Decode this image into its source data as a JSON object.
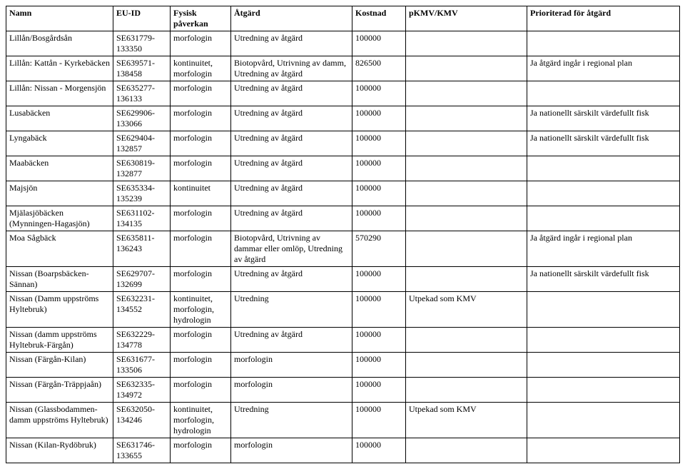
{
  "headers": {
    "namn": "Namn",
    "euid": "EU-ID",
    "fysisk": "Fysisk påverkan",
    "atgard": "Åtgärd",
    "kostnad": "Kostnad",
    "pkmv": "pKMV/KMV",
    "prior": "Prioriterad för åtgärd"
  },
  "rows": [
    {
      "namn": "Lillån/Bosgårdsån",
      "euid": "SE631779-133350",
      "fysisk": "morfologin",
      "atgard": "Utredning av åtgärd",
      "kostnad": "100000",
      "pkmv": "",
      "prior": ""
    },
    {
      "namn": "Lillån: Kattån - Kyrkebäcken",
      "euid": "SE639571-138458",
      "fysisk": "kontinuitet, morfologin",
      "atgard": "Biotopvård, Utrivning av damm, Utredning av åtgärd",
      "kostnad": "826500",
      "pkmv": "",
      "prior": "Ja åtgärd ingår i regional plan"
    },
    {
      "namn": "Lillån: Nissan - Morgensjön",
      "euid": "SE635277-136133",
      "fysisk": "morfologin",
      "atgard": "Utredning av åtgärd",
      "kostnad": "100000",
      "pkmv": "",
      "prior": ""
    },
    {
      "namn": "Lusabäcken",
      "euid": "SE629906-133066",
      "fysisk": "morfologin",
      "atgard": "Utredning av åtgärd",
      "kostnad": "100000",
      "pkmv": "",
      "prior": "Ja nationellt särskilt värdefullt fisk"
    },
    {
      "namn": "Lyngabäck",
      "euid": "SE629404-132857",
      "fysisk": "morfologin",
      "atgard": "Utredning av åtgärd",
      "kostnad": "100000",
      "pkmv": "",
      "prior": "Ja nationellt särskilt värdefullt fisk"
    },
    {
      "namn": "Maabäcken",
      "euid": "SE630819-132877",
      "fysisk": "morfologin",
      "atgard": "Utredning av åtgärd",
      "kostnad": "100000",
      "pkmv": "",
      "prior": ""
    },
    {
      "namn": "Majsjön",
      "euid": "SE635334-135239",
      "fysisk": "kontinuitet",
      "atgard": "Utredning av åtgärd",
      "kostnad": "100000",
      "pkmv": "",
      "prior": ""
    },
    {
      "namn": "Mjälasjöbäcken (Mynningen-Hagasjön)",
      "euid": "SE631102-134135",
      "fysisk": "morfologin",
      "atgard": "Utredning av åtgärd",
      "kostnad": "100000",
      "pkmv": "",
      "prior": ""
    },
    {
      "namn": "Moa Sågbäck",
      "euid": "SE635811-136243",
      "fysisk": "morfologin",
      "atgard": "Biotopvård, Utrivning av dammar eller omlöp, Utredning av åtgärd",
      "kostnad": "570290",
      "pkmv": "",
      "prior": "Ja åtgärd ingår i regional plan"
    },
    {
      "namn": "Nissan (Boarpsbäcken-Sännan)",
      "euid": "SE629707-132699",
      "fysisk": "morfologin",
      "atgard": "Utredning av åtgärd",
      "kostnad": "100000",
      "pkmv": "",
      "prior": "Ja nationellt särskilt värdefullt fisk"
    },
    {
      "namn": "Nissan (Damm uppströms Hyltebruk)",
      "euid": "SE632231-134552",
      "fysisk": "kontinuitet, morfologin, hydrologin",
      "atgard": "Utredning",
      "kostnad": "100000",
      "pkmv": "Utpekad som KMV",
      "prior": ""
    },
    {
      "namn": "Nissan (damm uppströms Hyltebruk-Färgån)",
      "euid": "SE632229-134778",
      "fysisk": "morfologin",
      "atgard": "Utredning av åtgärd",
      "kostnad": "100000",
      "pkmv": "",
      "prior": ""
    },
    {
      "namn": "Nissan (Färgån-Kilan)",
      "euid": "SE631677-133506",
      "fysisk": "morfologin",
      "atgard": "morfologin",
      "kostnad": "100000",
      "pkmv": "",
      "prior": ""
    },
    {
      "namn": "Nissan (Färgån-Träppjaån)",
      "euid": "SE632335-134972",
      "fysisk": "morfologin",
      "atgard": "morfologin",
      "kostnad": "100000",
      "pkmv": "",
      "prior": ""
    },
    {
      "namn": "Nissan (Glassbodammen-damm uppströms Hyltebruk)",
      "euid": "SE632050-134246",
      "fysisk": "kontinuitet, morfologin, hydrologin",
      "atgard": "Utredning",
      "kostnad": "100000",
      "pkmv": "Utpekad som KMV",
      "prior": ""
    },
    {
      "namn": "Nissan (Kilan-Rydöbruk)",
      "euid": "SE631746-133655",
      "fysisk": "morfologin",
      "atgard": "morfologin",
      "kostnad": "100000",
      "pkmv": "",
      "prior": ""
    }
  ]
}
